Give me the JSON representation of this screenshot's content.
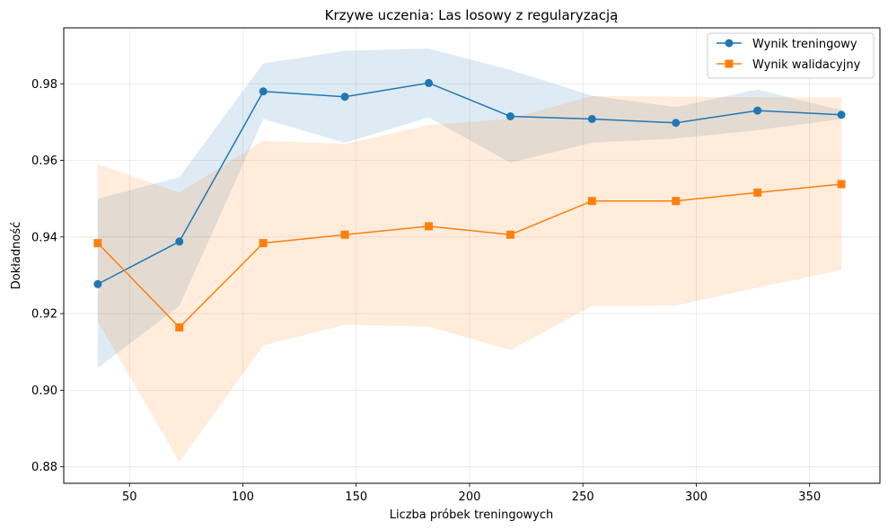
{
  "chart_data": {
    "type": "line",
    "title": "Krzywe uczenia: Las losowy z regularyzacją",
    "xlabel": "Liczba próbek treningowych",
    "ylabel": "Dokładność",
    "xlim": [
      21,
      381
    ],
    "ylim": [
      0.8757,
      0.9946
    ],
    "xticks": [
      50,
      100,
      150,
      200,
      250,
      300,
      350
    ],
    "yticks": [
      0.88,
      0.9,
      0.92,
      0.94,
      0.96,
      0.98
    ],
    "ytick_labels": [
      "0.88",
      "0.90",
      "0.92",
      "0.94",
      "0.96",
      "0.98"
    ],
    "grid": true,
    "legend_position": "upper right",
    "x": [
      36,
      72,
      109,
      145,
      182,
      218,
      254,
      291,
      327,
      364
    ],
    "series": [
      {
        "name": "Wynik treningowy",
        "color": "#1f77b4",
        "marker": "circle",
        "values": [
          0.9277,
          0.9388,
          0.978,
          0.9766,
          0.9802,
          0.9715,
          0.9708,
          0.9698,
          0.973,
          0.9719
        ],
        "band_upper": [
          0.95,
          0.9556,
          0.9853,
          0.9886,
          0.9892,
          0.9836,
          0.9769,
          0.9739,
          0.9785,
          0.9731
        ],
        "band_lower": [
          0.9058,
          0.922,
          0.9708,
          0.9646,
          0.9712,
          0.9594,
          0.9646,
          0.9657,
          0.9679,
          0.9708
        ]
      },
      {
        "name": "Wynik walidacyjny",
        "color": "#ff7f0e",
        "marker": "square",
        "values": [
          0.9384,
          0.9164,
          0.9384,
          0.9406,
          0.9428,
          0.9406,
          0.9494,
          0.9494,
          0.9516,
          0.9538
        ],
        "band_upper": [
          0.959,
          0.9516,
          0.9651,
          0.9643,
          0.9692,
          0.9709,
          0.9768,
          0.9766,
          0.9765,
          0.9764
        ],
        "band_lower": [
          0.9179,
          0.8813,
          0.9117,
          0.9171,
          0.9166,
          0.9105,
          0.922,
          0.9221,
          0.9268,
          0.9314
        ]
      }
    ]
  }
}
